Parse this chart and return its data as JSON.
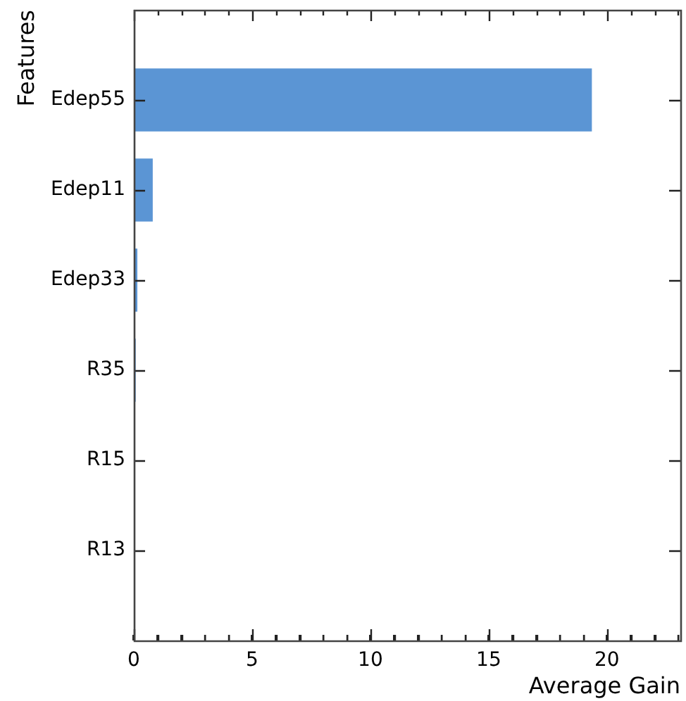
{
  "chart_data": {
    "type": "bar",
    "orientation": "horizontal",
    "xlabel": "Average Gain",
    "ylabel": "Features",
    "categories": [
      "Edep55",
      "Edep11",
      "Edep33",
      "R35",
      "R15",
      "R13"
    ],
    "values": [
      19.36,
      0.8,
      0.15,
      0.08,
      0.02,
      0.01
    ],
    "color": "#5b95d4",
    "xlim": [
      0,
      23.1
    ],
    "xticks": [
      0,
      {
        "value": 1,
        "label": null
      },
      {
        "value": 2,
        "label": null
      },
      {
        "value": 3,
        "label": null
      },
      {
        "value": 4,
        "label": null
      },
      5,
      {
        "value": 6,
        "label": null
      },
      {
        "value": 7,
        "label": null
      },
      {
        "value": 8,
        "label": null
      },
      {
        "value": 9,
        "label": null
      },
      10,
      {
        "value": 11,
        "label": null
      },
      {
        "value": 12,
        "label": null
      },
      {
        "value": 13,
        "label": null
      },
      {
        "value": 14,
        "label": null
      },
      15,
      {
        "value": 16,
        "label": null
      },
      {
        "value": 17,
        "label": null
      },
      {
        "value": 18,
        "label": null
      },
      {
        "value": 19,
        "label": null
      },
      20,
      {
        "value": 21,
        "label": null
      },
      {
        "value": 22,
        "label": null
      },
      {
        "value": 23,
        "label": null
      }
    ]
  }
}
